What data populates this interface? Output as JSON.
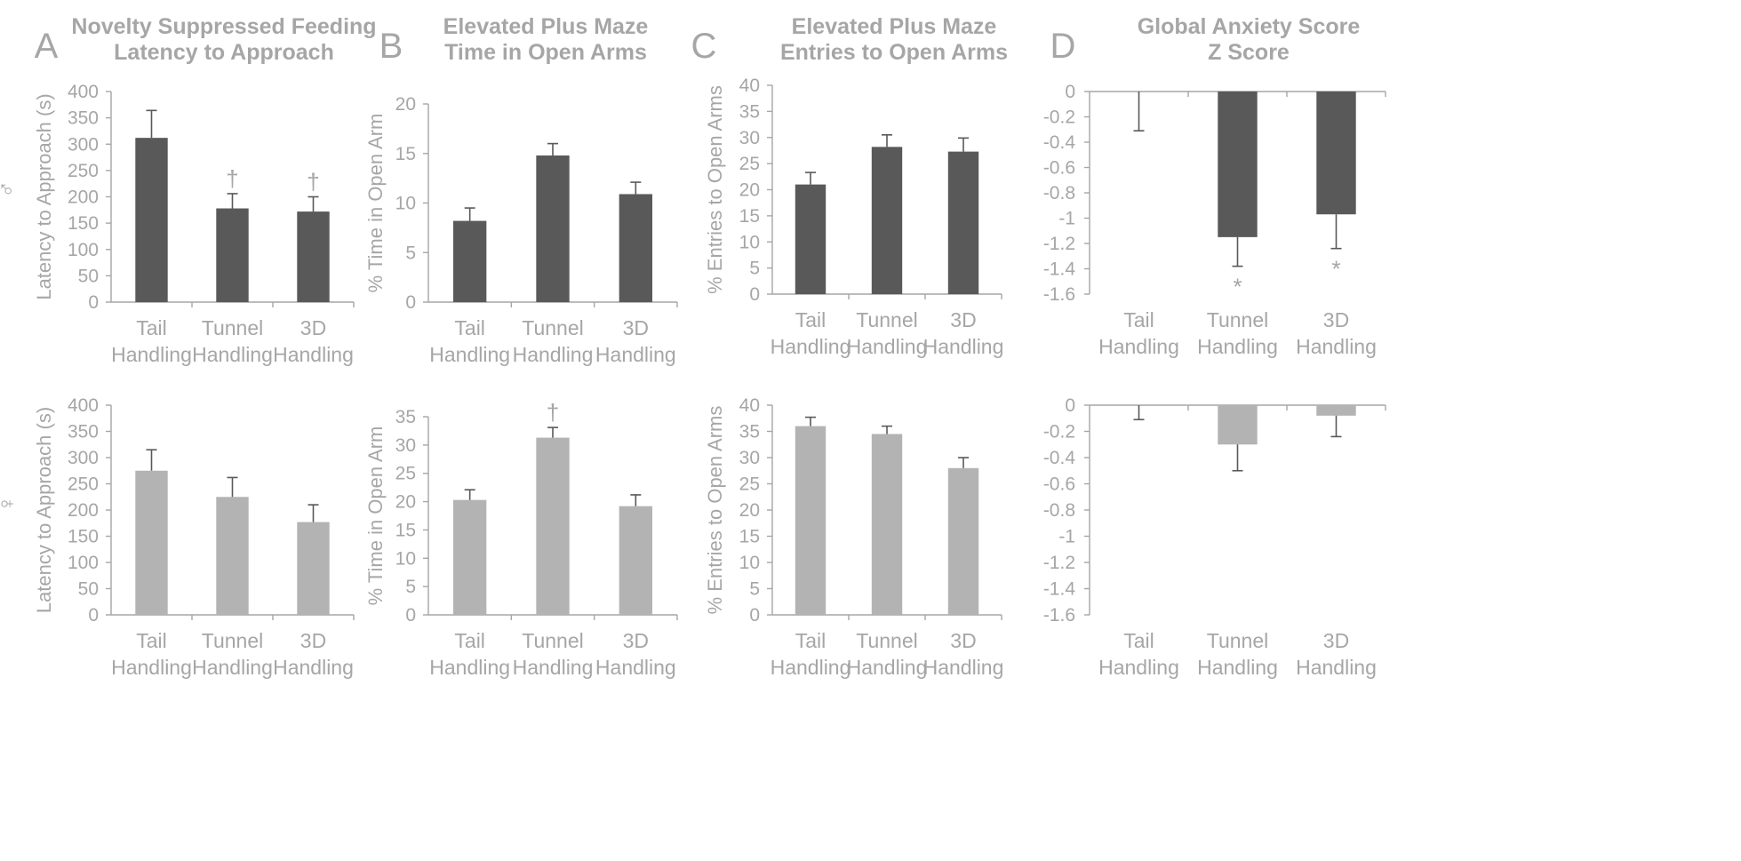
{
  "figure": {
    "panel_letters": [
      "A",
      "B",
      "C",
      "D"
    ],
    "sex_labels": {
      "male": "♂",
      "female": "♀"
    },
    "colors": {
      "male_bar": "#595959",
      "female_bar": "#b3b3b3",
      "axis": "#a6a6a6",
      "text": "#a6a6a6"
    }
  },
  "chart_data": [
    {
      "id": "A-male",
      "panel": "A",
      "type": "bar",
      "title_lines": [
        "Novelty Suppressed Feeding",
        "Latency to Approach"
      ],
      "ylabel": "Latency to Approach (s)",
      "categories": [
        [
          "Tail",
          "Handling"
        ],
        [
          "Tunnel",
          "Handling"
        ],
        [
          "3D",
          "Handling"
        ]
      ],
      "values": [
        312,
        178,
        172
      ],
      "errors": [
        52,
        28,
        28
      ],
      "ylim": [
        0,
        400
      ],
      "yticks": [
        0,
        50,
        100,
        150,
        200,
        250,
        300,
        350,
        400
      ],
      "marks": [
        "",
        "†",
        "†"
      ],
      "sex": "male"
    },
    {
      "id": "B-male",
      "panel": "B",
      "type": "bar",
      "title_lines": [
        "Elevated Plus Maze",
        "Time in Open Arms"
      ],
      "ylabel": "% Time in Open Arm",
      "categories": [
        [
          "Tail",
          "Handling"
        ],
        [
          "Tunnel",
          "Handling"
        ],
        [
          "3D",
          "Handling"
        ]
      ],
      "values": [
        8.2,
        14.8,
        10.9
      ],
      "errors": [
        1.3,
        1.2,
        1.2
      ],
      "ylim": [
        0,
        20
      ],
      "yticks": [
        0,
        5,
        10,
        15,
        20
      ],
      "ytick_labels": [
        "0",
        "5",
        "10",
        "15",
        "20"
      ],
      "marks": [
        "",
        "",
        ""
      ],
      "sex": "male"
    },
    {
      "id": "C-male",
      "panel": "C",
      "type": "bar",
      "title_lines": [
        "Elevated Plus Maze",
        "Entries to Open Arms"
      ],
      "ylabel": "% Entries to Open Arms",
      "categories": [
        [
          "Tail",
          "Handling"
        ],
        [
          "Tunnel",
          "Handling"
        ],
        [
          "3D",
          "Handling"
        ]
      ],
      "values": [
        21,
        28.2,
        27.3
      ],
      "errors": [
        2.3,
        2.3,
        2.6
      ],
      "ylim": [
        0,
        40
      ],
      "yticks": [
        0,
        5,
        10,
        15,
        20,
        25,
        30,
        35,
        40
      ],
      "marks": [
        "",
        "",
        ""
      ],
      "sex": "male"
    },
    {
      "id": "D-male",
      "panel": "D",
      "type": "bar",
      "title_lines": [
        "Global Anxiety Score",
        "Z Score"
      ],
      "ylabel": "",
      "categories": [
        [
          "Tail",
          "Handling"
        ],
        [
          "Tunnel",
          "Handling"
        ],
        [
          "3D",
          "Handling"
        ]
      ],
      "values": [
        0,
        -1.15,
        -0.97
      ],
      "errors": [
        0.31,
        0.23,
        0.27
      ],
      "ylim": [
        -1.6,
        0
      ],
      "yticks": [
        0,
        -0.2,
        -0.4,
        -0.6,
        -0.8,
        -1,
        -1.2,
        -1.4,
        -1.6
      ],
      "ytick_labels": [
        "0",
        "-0.2",
        "-0.4",
        "-0.6",
        "-0.8",
        "-1",
        "-1.2",
        "-1.4",
        "-1.6"
      ],
      "marks": [
        "",
        "*",
        "*"
      ],
      "sex": "male"
    },
    {
      "id": "A-female",
      "panel": "A",
      "type": "bar",
      "ylabel": "Latency to Approach (s)",
      "categories": [
        [
          "Tail",
          "Handling"
        ],
        [
          "Tunnel",
          "Handling"
        ],
        [
          "3D",
          "Handling"
        ]
      ],
      "values": [
        275,
        225,
        177
      ],
      "errors": [
        40,
        37,
        33
      ],
      "ylim": [
        0,
        400
      ],
      "yticks": [
        0,
        50,
        100,
        150,
        200,
        250,
        300,
        350,
        400
      ],
      "marks": [
        "",
        "",
        ""
      ],
      "sex": "female"
    },
    {
      "id": "B-female",
      "panel": "B",
      "type": "bar",
      "ylabel": "% Time in Open Arm",
      "categories": [
        [
          "Tail",
          "Handling"
        ],
        [
          "Tunnel",
          "Handling"
        ],
        [
          "3D",
          "Handling"
        ]
      ],
      "values": [
        20.3,
        31.3,
        19.2
      ],
      "errors": [
        1.8,
        1.8,
        2.0
      ],
      "ylim": [
        0,
        35
      ],
      "yticks": [
        0,
        5,
        10,
        15,
        20,
        25,
        30,
        35
      ],
      "ytick_labels": [
        "0",
        "5",
        "10",
        "15",
        "20",
        "25",
        "30",
        "35"
      ],
      "marks": [
        "",
        "†",
        ""
      ],
      "sex": "female"
    },
    {
      "id": "C-female",
      "panel": "C",
      "type": "bar",
      "ylabel": "% Entries to Open Arms",
      "categories": [
        [
          "Tail",
          "Handling"
        ],
        [
          "Tunnel",
          "Handling"
        ],
        [
          "3D",
          "Handling"
        ]
      ],
      "values": [
        36,
        34.5,
        28
      ],
      "errors": [
        1.7,
        1.5,
        2.0
      ],
      "ylim": [
        0,
        40
      ],
      "yticks": [
        0,
        5,
        10,
        15,
        20,
        25,
        30,
        35,
        40
      ],
      "marks": [
        "",
        "",
        ""
      ],
      "sex": "female"
    },
    {
      "id": "D-female",
      "panel": "D",
      "type": "bar",
      "ylabel": "",
      "categories": [
        [
          "Tail",
          "Handling"
        ],
        [
          "Tunnel",
          "Handling"
        ],
        [
          "3D",
          "Handling"
        ]
      ],
      "values": [
        0,
        -0.3,
        -0.08
      ],
      "errors": [
        0.11,
        0.2,
        0.16
      ],
      "ylim": [
        -1.6,
        0
      ],
      "yticks": [
        0,
        -0.2,
        -0.4,
        -0.6,
        -0.8,
        -1,
        -1.2,
        -1.4,
        -1.6
      ],
      "ytick_labels": [
        "0",
        "-0.2",
        "-0.4",
        "-0.6",
        "-0.8",
        "-1",
        "-1.2",
        "-1.4",
        "-1.6"
      ],
      "marks": [
        "",
        "",
        ""
      ],
      "sex": "female"
    }
  ]
}
